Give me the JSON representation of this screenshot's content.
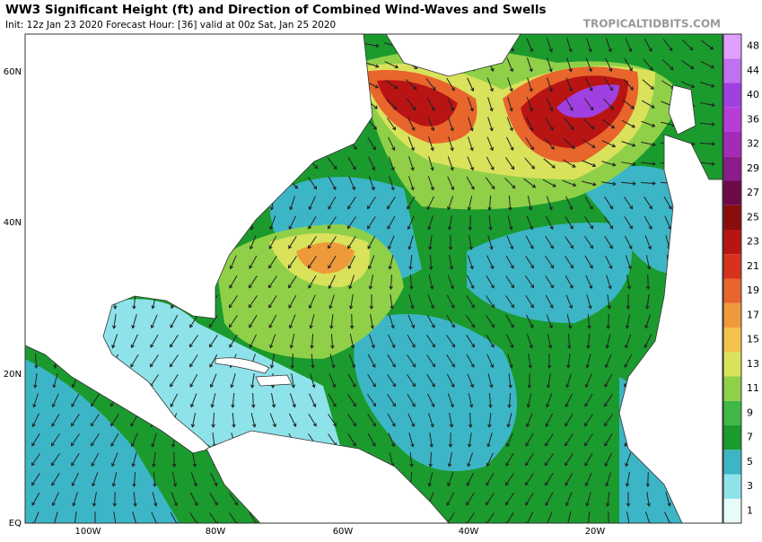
{
  "header": {
    "title": "WW3 Significant Height (ft) and Direction of Combined Wind-Waves and Swells",
    "subtitle": "Init: 12z Jan 23 2020   Forecast Hour: [36]   valid at 00z Sat, Jan 25 2020",
    "site": "TROPICALTIDBITS.COM"
  },
  "map": {
    "lat_labels": [
      "60N",
      "40N",
      "20N",
      "EQ"
    ],
    "lon_labels": [
      "100W",
      "80W",
      "60W",
      "40W",
      "20W"
    ]
  },
  "colorbar": {
    "ticks": [
      1,
      3,
      5,
      7,
      9,
      11,
      13,
      15,
      17,
      19,
      21,
      23,
      25,
      27,
      29,
      32,
      36,
      40,
      44,
      48
    ],
    "colors": [
      "#e8fbfb",
      "#8ee3ea",
      "#3cb6c6",
      "#1b9a2e",
      "#3fb845",
      "#8fd048",
      "#d9e25a",
      "#f2c24a",
      "#ef9a3a",
      "#e8652c",
      "#d8321e",
      "#b81414",
      "#8a0c0c",
      "#6e0a4a",
      "#8a1c8c",
      "#a42ab8",
      "#b83cd8",
      "#a040e0",
      "#c070f0",
      "#e0a0ff"
    ]
  }
}
